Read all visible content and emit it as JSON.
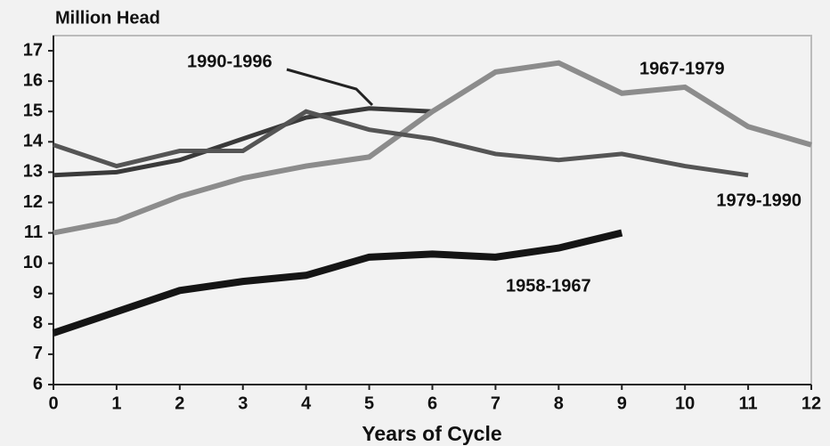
{
  "chart_data": {
    "type": "line",
    "y_label": "Million Head",
    "x_label": "Years of Cycle",
    "x": [
      0,
      1,
      2,
      3,
      4,
      5,
      6,
      7,
      8,
      9,
      10,
      11,
      12
    ],
    "xlim": [
      0,
      12
    ],
    "xticks": [
      0,
      1,
      2,
      3,
      4,
      5,
      6,
      7,
      8,
      9,
      10,
      11,
      12
    ],
    "ylim": [
      6,
      17.5
    ],
    "yticks": [
      6,
      7,
      8,
      9,
      10,
      11,
      12,
      13,
      14,
      15,
      16,
      17
    ],
    "series": [
      {
        "name": "1990-1996",
        "color": "#3a3a3a",
        "values": [
          12.9,
          13.0,
          13.4,
          14.1,
          14.8,
          15.1,
          15.0,
          null,
          null,
          null,
          null,
          null,
          null
        ]
      },
      {
        "name": "1967-1979",
        "color": "#8c8c8c",
        "values": [
          11.0,
          11.4,
          12.2,
          12.8,
          13.2,
          13.5,
          15.0,
          16.3,
          16.6,
          15.6,
          15.8,
          14.5,
          13.9
        ]
      },
      {
        "name": "1979-1990",
        "color": "#555555",
        "values": [
          13.9,
          13.2,
          13.7,
          13.7,
          15.0,
          14.4,
          14.1,
          13.6,
          13.4,
          13.6,
          13.2,
          12.9,
          null
        ]
      },
      {
        "name": "1958-1967",
        "color": "#151515",
        "values": [
          7.7,
          8.4,
          9.1,
          9.4,
          9.6,
          10.2,
          10.3,
          10.2,
          10.5,
          11.0,
          null,
          null,
          null
        ]
      }
    ]
  }
}
